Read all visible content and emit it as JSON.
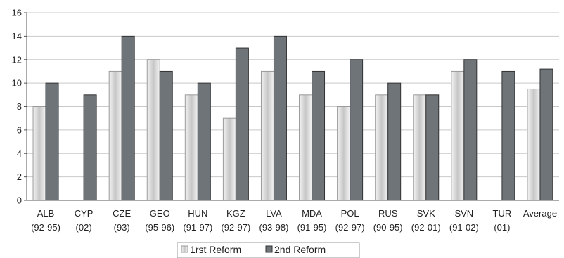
{
  "chart_data": {
    "type": "bar",
    "title": "",
    "xlabel": "",
    "ylabel": "",
    "ylim": [
      0,
      16
    ],
    "yticks": [
      0,
      2,
      4,
      6,
      8,
      10,
      12,
      14,
      16
    ],
    "grid": true,
    "legend_position": "bottom",
    "categories": [
      {
        "code": "ALB",
        "period": "(92-95)"
      },
      {
        "code": "CYP",
        "period": "(02)"
      },
      {
        "code": "CZE",
        "period": "(93)"
      },
      {
        "code": "GEO",
        "period": "(95-96)"
      },
      {
        "code": "HUN",
        "period": "(91-97)"
      },
      {
        "code": "KGZ",
        "period": "(92-97)"
      },
      {
        "code": "LVA",
        "period": "(93-98)"
      },
      {
        "code": "MDA",
        "period": "(91-95)"
      },
      {
        "code": "POL",
        "period": "(92-97)"
      },
      {
        "code": "RUS",
        "period": "(90-95)"
      },
      {
        "code": "SVK",
        "period": "(92-01)"
      },
      {
        "code": "SVN",
        "period": "(91-02)"
      },
      {
        "code": "TUR",
        "period": "(01)"
      },
      {
        "code": "Average",
        "period": ""
      }
    ],
    "series": [
      {
        "name": "1rst Reform",
        "color": "#d8d8d8",
        "values": [
          8,
          null,
          11,
          12,
          9,
          7,
          11,
          9,
          8,
          9,
          9,
          11,
          null,
          9.5
        ]
      },
      {
        "name": "2nd Reform",
        "color": "#6f7478",
        "values": [
          10,
          9,
          14,
          11,
          10,
          13,
          14,
          11,
          12,
          10,
          9,
          12,
          11,
          11.2
        ]
      }
    ]
  }
}
